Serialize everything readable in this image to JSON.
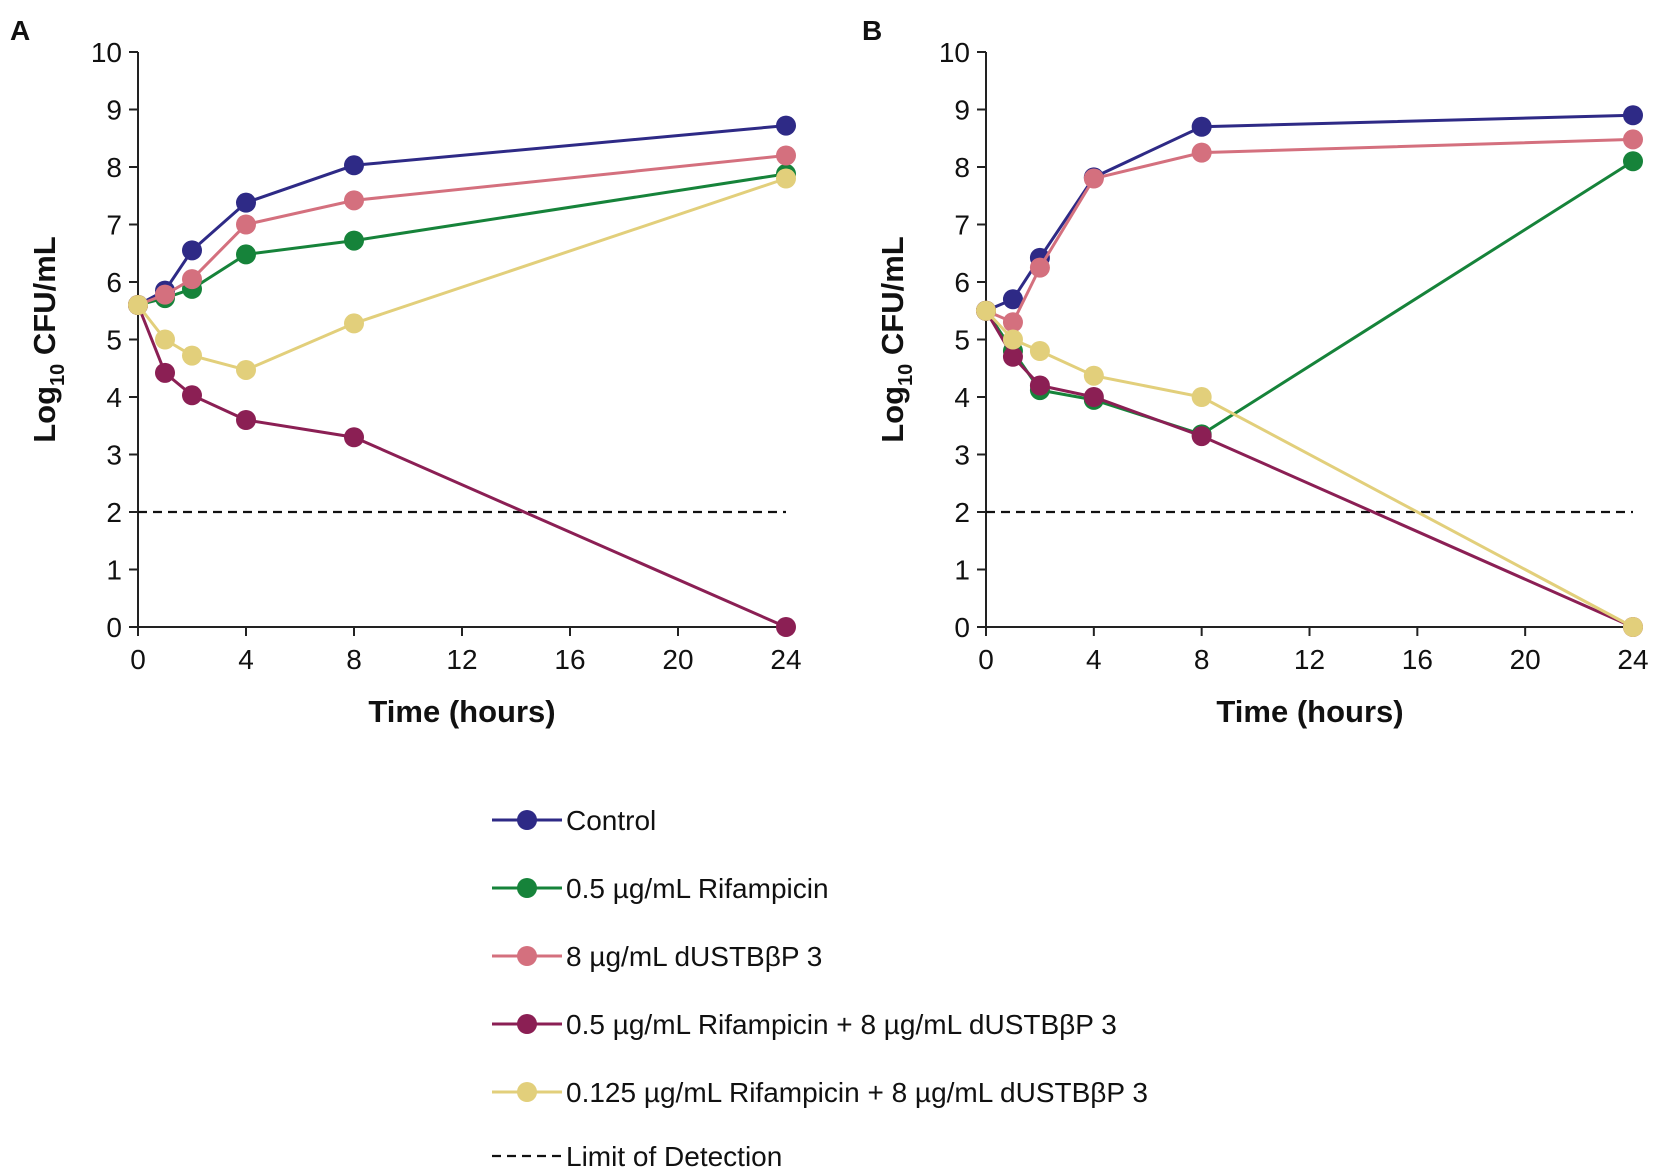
{
  "chart_data": [
    {
      "type": "line",
      "panel": "A",
      "xlabel": "Time (hours)",
      "ylabel_main": "Log",
      "ylabel_sub": "10",
      "ylabel_rest": " CFU/mL",
      "xlim": [
        0,
        24
      ],
      "ylim": [
        0,
        10
      ],
      "xticks": [
        0,
        4,
        8,
        12,
        16,
        20,
        24
      ],
      "yticks": [
        0,
        1,
        2,
        3,
        4,
        5,
        6,
        7,
        8,
        9,
        10
      ],
      "limit_of_detection": 2,
      "x": [
        0,
        1,
        2,
        4,
        8,
        24
      ],
      "series": [
        {
          "name": "Control",
          "color": "#2e2a86",
          "values": [
            5.6,
            5.85,
            6.55,
            7.38,
            8.03,
            8.72
          ]
        },
        {
          "name": "0.5 µg/mL Rifampicin",
          "color": "#16833a",
          "values": [
            5.6,
            5.72,
            5.88,
            6.48,
            6.72,
            7.88
          ]
        },
        {
          "name": "8 µg/mL dUSTBβP 3",
          "color": "#d4707e",
          "values": [
            5.6,
            5.78,
            6.05,
            7.0,
            7.42,
            8.2
          ]
        },
        {
          "name": "0.5 µg/mL Rifampicin + 8 µg/mL dUSTBβP 3",
          "color": "#8b1f54",
          "values": [
            5.6,
            4.42,
            4.03,
            3.6,
            3.3,
            0.0
          ]
        },
        {
          "name": "0.125 µg/mL Rifampicin + 8 µg/mL dUSTBβP 3",
          "color": "#e2cf7b",
          "values": [
            5.6,
            5.0,
            4.72,
            4.47,
            5.28,
            7.8
          ]
        }
      ]
    },
    {
      "type": "line",
      "panel": "B",
      "xlabel": "Time (hours)",
      "ylabel_main": "Log",
      "ylabel_sub": "10",
      "ylabel_rest": " CFU/mL",
      "xlim": [
        0,
        24
      ],
      "ylim": [
        0,
        10
      ],
      "xticks": [
        0,
        4,
        8,
        12,
        16,
        20,
        24
      ],
      "yticks": [
        0,
        1,
        2,
        3,
        4,
        5,
        6,
        7,
        8,
        9,
        10
      ],
      "limit_of_detection": 2,
      "x": [
        0,
        1,
        2,
        4,
        8,
        24
      ],
      "series": [
        {
          "name": "Control",
          "color": "#2e2a86",
          "values": [
            5.5,
            5.7,
            6.42,
            7.82,
            8.7,
            8.9
          ]
        },
        {
          "name": "0.5 µg/mL Rifampicin",
          "color": "#16833a",
          "values": [
            5.5,
            4.8,
            4.12,
            3.95,
            3.35,
            8.1
          ]
        },
        {
          "name": "8 µg/mL dUSTBβP 3",
          "color": "#d4707e",
          "values": [
            5.5,
            5.3,
            6.25,
            7.8,
            8.25,
            8.48
          ]
        },
        {
          "name": "0.5 µg/mL Rifampicin + 8 µg/mL dUSTBβP 3",
          "color": "#8b1f54",
          "values": [
            5.5,
            4.7,
            4.2,
            4.0,
            3.32,
            0.0
          ]
        },
        {
          "name": "0.125 µg/mL Rifampicin + 8 µg/mL dUSTBβP 3",
          "color": "#e2cf7b",
          "values": [
            5.5,
            5.0,
            4.8,
            4.37,
            4.0,
            0.0
          ]
        }
      ]
    }
  ],
  "legend": {
    "entries": [
      {
        "label": "Control",
        "color": "#2e2a86"
      },
      {
        "label": "0.5 µg/mL Rifampicin",
        "color": "#16833a"
      },
      {
        "label": "8 µg/mL dUSTBβP 3",
        "color": "#d4707e"
      },
      {
        "label": "0.5 µg/mL Rifampicin + 8 µg/mL dUSTBβP 3",
        "color": "#8b1f54"
      },
      {
        "label": "0.125 µg/mL Rifampicin + 8 µg/mL dUSTBβP 3",
        "color": "#e2cf7b"
      }
    ],
    "lod_label": "Limit of Detection"
  }
}
